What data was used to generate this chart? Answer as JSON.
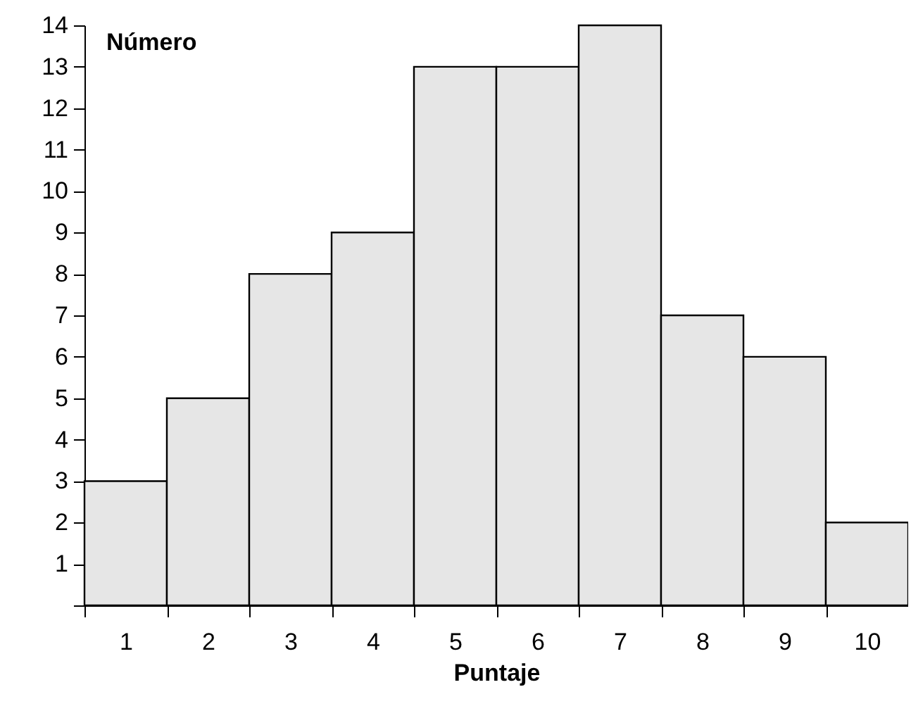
{
  "chart_data": {
    "type": "bar",
    "xlabel": "Puntaje",
    "ylabel": "Número",
    "categories": [
      "1",
      "2",
      "3",
      "4",
      "5",
      "6",
      "7",
      "8",
      "9",
      "10"
    ],
    "values": [
      3,
      5,
      8,
      9,
      13,
      13,
      14,
      7,
      6,
      2
    ],
    "color": "#e6e6e6",
    "ylim": [
      0,
      14
    ],
    "yticks": [
      {
        "value": 0,
        "label": null
      },
      1,
      2,
      3,
      4,
      5,
      6,
      7,
      8,
      9,
      10,
      11,
      12,
      13,
      14
    ],
    "grid": false
  }
}
